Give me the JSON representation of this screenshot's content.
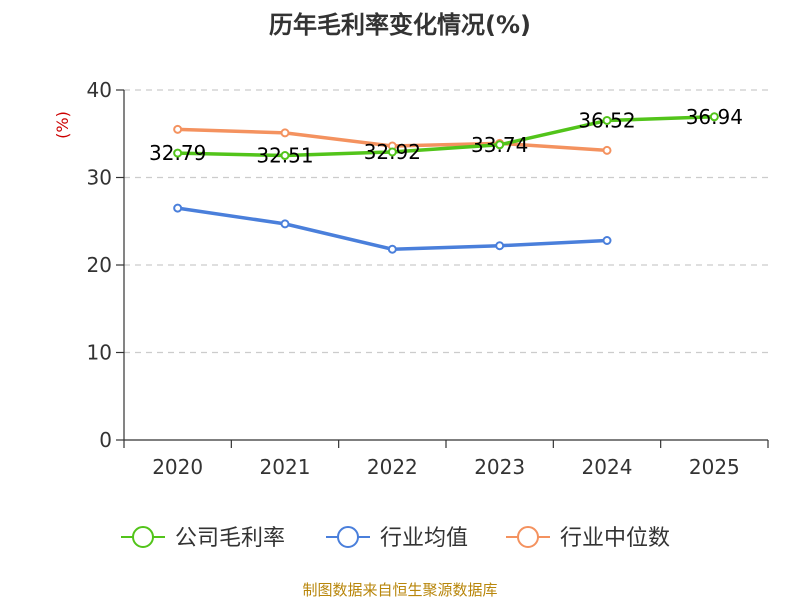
{
  "chart_data": {
    "type": "line",
    "title": "历年毛利率变化情况(%)",
    "ylabel": "(%)",
    "xlabel": "",
    "categories": [
      "2020",
      "2021",
      "2022",
      "2023",
      "2024",
      "2025"
    ],
    "ylim": [
      0,
      40
    ],
    "yticks": [
      0,
      10,
      20,
      30,
      40
    ],
    "grid": "horizontal-dashed",
    "legend_position": "bottom",
    "series": [
      {
        "name": "公司毛利率",
        "color": "#52c41a",
        "values": [
          32.79,
          32.51,
          32.92,
          33.74,
          36.52,
          36.94
        ],
        "labels": [
          "32.79",
          "32.51",
          "32.92",
          "33.74",
          "36.52",
          "36.94"
        ]
      },
      {
        "name": "行业均值",
        "color": "#4a7fdb",
        "values": [
          26.5,
          24.7,
          21.8,
          22.2,
          22.8,
          null
        ]
      },
      {
        "name": "行业中位数",
        "color": "#f4925f",
        "values": [
          35.5,
          35.1,
          33.6,
          33.9,
          33.1,
          null
        ]
      }
    ]
  },
  "footer": {
    "source": "制图数据来自恒生聚源数据库"
  }
}
